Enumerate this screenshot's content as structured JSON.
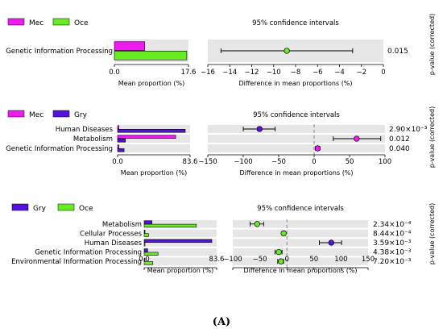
{
  "figure_label": "(A)",
  "colors": {
    "Mec": "#ee1cee",
    "Oce": "#66ee22",
    "Gry": "#5511dd",
    "band": "#e6e6e6",
    "zero_line": "#888888"
  },
  "chart_data": [
    {
      "type": "bar",
      "legend": [
        "Mec",
        "Oce"
      ],
      "categories": [
        "Genetic Information Processing"
      ],
      "series": [
        {
          "name": "Mec",
          "values": [
            7.2
          ]
        },
        {
          "name": "Oce",
          "values": [
            17.2
          ]
        }
      ],
      "xlim": [
        0,
        17.6
      ],
      "xticks": [
        "0.0",
        "17.6"
      ],
      "xlabel": "Mean proportion (%)",
      "ci": {
        "title": "95% confidence intervals",
        "xlabel": "Difference in mean proportions (%)",
        "xlim": [
          -16,
          0
        ],
        "ticks": [
          -16,
          -14,
          -12,
          -10,
          -8,
          -6,
          -4,
          -2,
          0
        ],
        "tick_labels": [
          "−16",
          "−14",
          "−12",
          "−10",
          "−8",
          "−6",
          "−4",
          "−2",
          "0"
        ],
        "zero_line": false,
        "diff": [
          -8.8
        ],
        "lower": [
          -14.8
        ],
        "upper": [
          -2.8
        ],
        "point_group": [
          "Oce"
        ]
      },
      "pvalues": [
        "0.015"
      ],
      "pvalue_label": "p-value (corrected)"
    },
    {
      "type": "bar",
      "legend": [
        "Mec",
        "Gry"
      ],
      "categories": [
        "Human Diseases",
        "Metabolism",
        "Genetic Information Processing"
      ],
      "series": [
        {
          "name": "Mec",
          "values": [
            1.5,
            67.0,
            1.5
          ]
        },
        {
          "name": "Gry",
          "values": [
            78.0,
            9.0,
            7.5
          ]
        }
      ],
      "xlim": [
        0,
        83.6
      ],
      "xticks": [
        "0.0",
        "83.6"
      ],
      "xlabel": "Mean proportion (%)",
      "ci": {
        "title": "95% confidence intervals",
        "xlabel": "Difference in mean proportions (%)",
        "xlim": [
          -150,
          100
        ],
        "ticks": [
          -150,
          -100,
          -50,
          0,
          50,
          100
        ],
        "tick_labels": [
          "−150",
          "−100",
          "−50",
          "0",
          "50",
          "100"
        ],
        "zero_line": true,
        "diff": [
          -77,
          60,
          5
        ],
        "lower": [
          -100,
          27,
          2
        ],
        "upper": [
          -55,
          94,
          8
        ],
        "point_group": [
          "Gry",
          "Mec",
          "Mec"
        ]
      },
      "pvalues": [
        "2.90×10⁻³",
        "0.012",
        "0.040"
      ],
      "pvalue_label": "p-value (corrected)"
    },
    {
      "type": "bar",
      "legend": [
        "Gry",
        "Oce"
      ],
      "categories": [
        "Metabolism",
        "Cellular Processes",
        "Human Diseases",
        "Genetic Information Processing",
        "Environmental Information Processing"
      ],
      "series": [
        {
          "name": "Gry",
          "values": [
            9.0,
            0.5,
            78.0,
            4.0,
            0.5
          ]
        },
        {
          "name": "Oce",
          "values": [
            60.0,
            5.0,
            0.5,
            16.0,
            10.0
          ]
        }
      ],
      "xlim": [
        0,
        83.6
      ],
      "xticks": [
        "0.0",
        "83.6"
      ],
      "xlabel": "Mean proportion (%)",
      "ci": {
        "title": "95% confidence intervals",
        "xlabel": "Difference in mean proportions (%)",
        "xlim": [
          -100,
          150
        ],
        "ticks": [
          -100,
          -50,
          0,
          50,
          100,
          150
        ],
        "tick_labels": [
          "−100",
          "−50",
          "0",
          "50",
          "100",
          "150"
        ],
        "zero_line": true,
        "diff": [
          -55,
          -6,
          82,
          -15,
          -11
        ],
        "lower": [
          -68,
          -9,
          60,
          -22,
          -17
        ],
        "upper": [
          -43,
          -3,
          101,
          -9,
          -6
        ],
        "point_group": [
          "Oce",
          "Oce",
          "Gry",
          "Oce",
          "Oce"
        ]
      },
      "pvalues": [
        "2.34×10⁻⁴",
        "8.44×10⁻⁴",
        "3.59×10⁻³",
        "4.38×10⁻³",
        "7.20×10⁻³"
      ],
      "pvalue_label": "p-value (corrected)"
    }
  ]
}
